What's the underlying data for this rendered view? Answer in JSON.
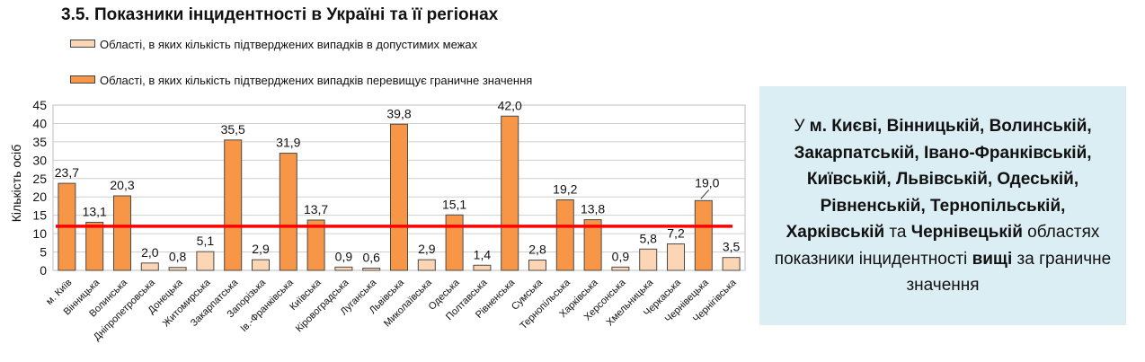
{
  "title": "3.5.  Показники інцидентності в Україні та її регіонах",
  "legend": [
    {
      "label": "Області, в яких кількість підтверджених випадків в допустимих межах",
      "color": "#fcd5b5"
    },
    {
      "label": "Області, в яких кількість підтверджених випадків перевищує граничне значення",
      "color": "#f79646"
    }
  ],
  "chart_data": {
    "type": "bar",
    "ylabel": "Кількість осіб",
    "ylim": [
      0,
      45
    ],
    "yticks": [
      0,
      5,
      10,
      15,
      20,
      25,
      30,
      35,
      40,
      45
    ],
    "grid": true,
    "threshold": 12,
    "categories": [
      "м. Київ",
      "Вінницька",
      "Волинська",
      "Дніпропетровська",
      "Донецька",
      "Житомирська",
      "Закарпатська",
      "Запорізька",
      "Ів.-Франківська",
      "Київська",
      "Кіровоградська",
      "Луганська",
      "Львівська",
      "Миколаївська",
      "Одеська",
      "Полтавська",
      "Рівненська",
      "Сумська",
      "Тернопільська",
      "Харківська",
      "Херсонська",
      "Хмельницька",
      "Черкаська",
      "Чернівецька",
      "Чернігівська"
    ],
    "values": [
      23.7,
      13.1,
      20.3,
      2.0,
      0.8,
      5.1,
      35.5,
      2.9,
      31.9,
      13.7,
      0.9,
      0.6,
      39.8,
      2.9,
      15.1,
      1.4,
      42.0,
      2.8,
      19.2,
      13.8,
      0.9,
      5.8,
      7.2,
      19.0,
      3.5
    ],
    "value_labels": [
      "23,7",
      "13,1",
      "20,3",
      "2,0",
      "0,8",
      "5,1",
      "35,5",
      "2,9",
      "31,9",
      "13,7",
      "0,9",
      "0,6",
      "39,8",
      "2,9",
      "15,1",
      "1,4",
      "42,0",
      "2,8",
      "19,2",
      "13,8",
      "0,9",
      "5,8",
      "7,2",
      "19,0",
      "3,5"
    ],
    "exceeds": [
      true,
      true,
      true,
      false,
      false,
      false,
      true,
      false,
      true,
      true,
      false,
      false,
      true,
      false,
      true,
      false,
      true,
      false,
      true,
      true,
      false,
      false,
      false,
      true,
      false
    ]
  },
  "info": {
    "prefix": "У ",
    "regions_bold": "м. Києві, Вінницькій, Волинській, Закарпатській, Івано-Франківській, Київській, Львівській, Одеській, Рівненській, Тернопільській, Харківській",
    "conj": " та ",
    "region_last": "Чернівецькій",
    "mid": " областях показники інцидентності ",
    "emph": "вищі",
    "suffix": " за граничне значення"
  }
}
